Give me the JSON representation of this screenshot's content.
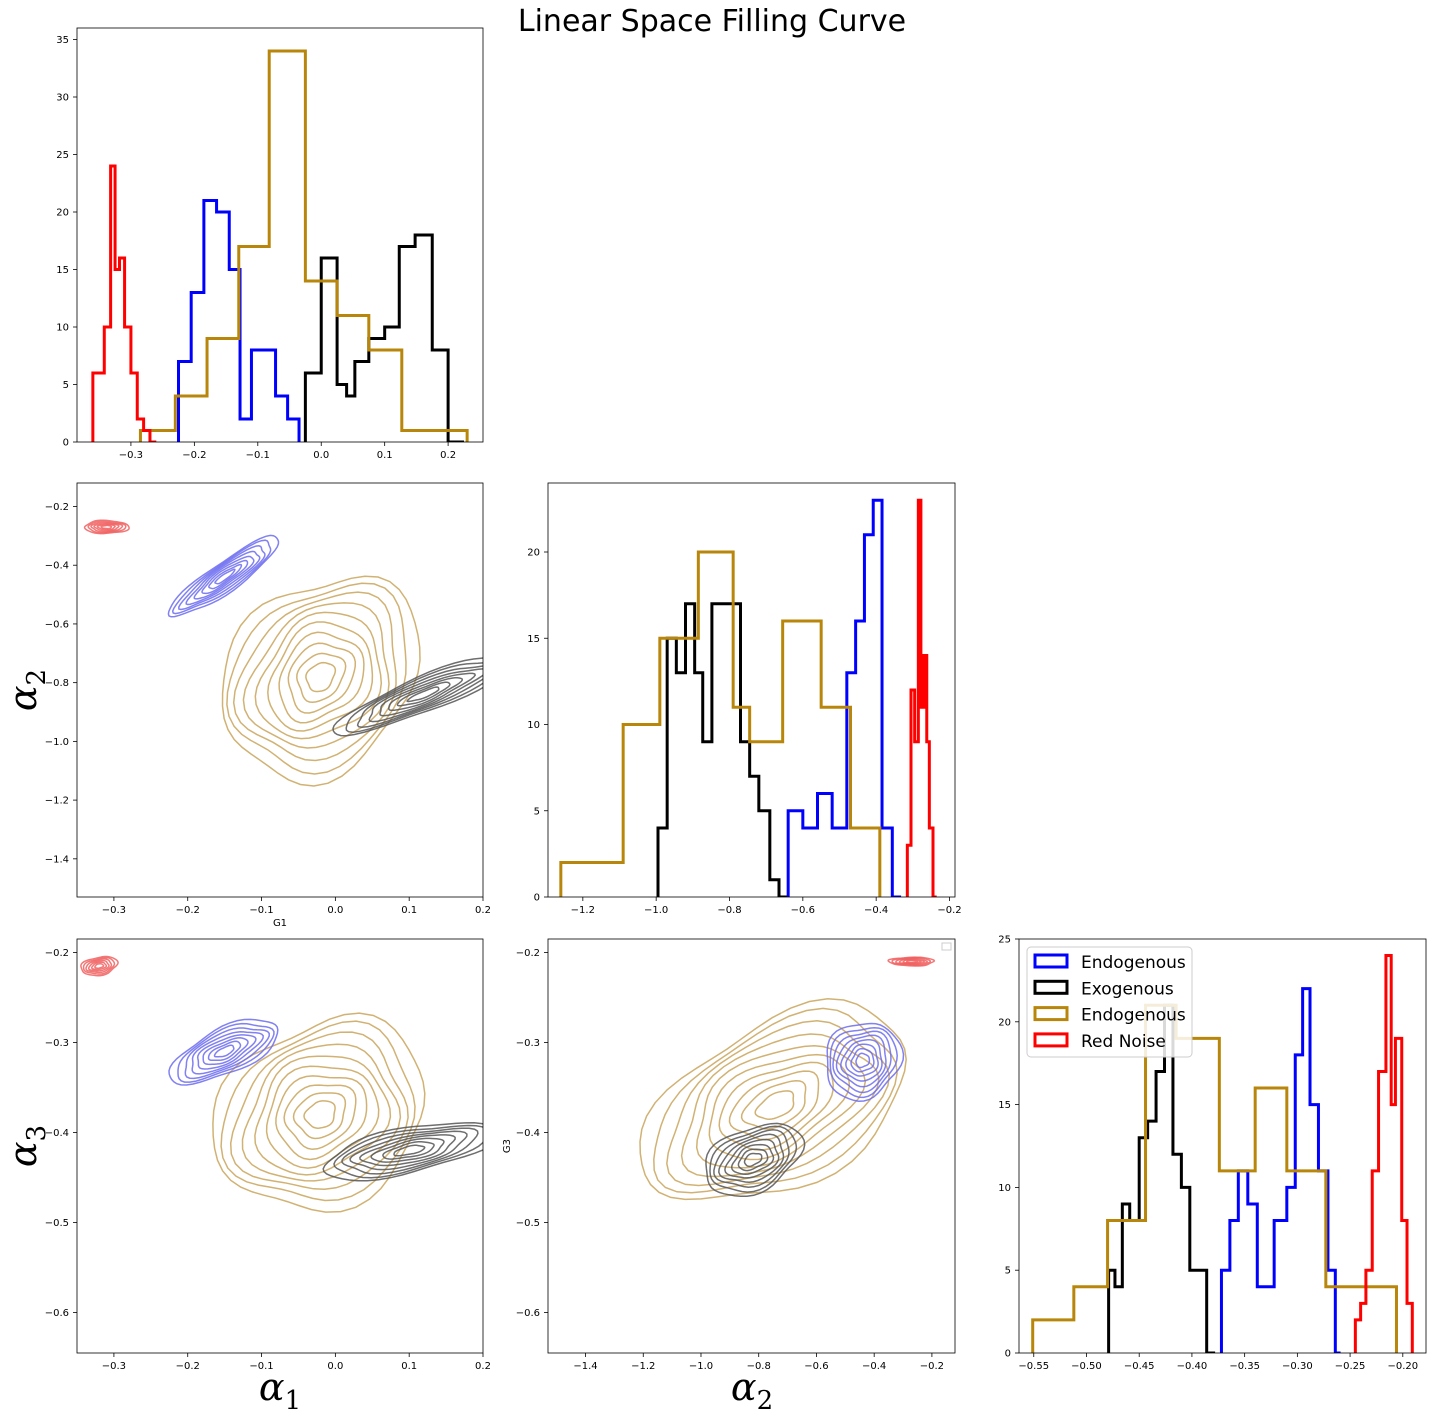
{
  "title": "Linear Space Filling Curve",
  "colors": {
    "blue": "#0000ff",
    "black": "#000000",
    "gold": "#b8860b",
    "red": "#ff0000",
    "blue_c": "#6b6bf0",
    "black_c": "#555555",
    "gold_c": "#c9a45a",
    "red_c": "#f06060"
  },
  "legend": [
    "Endogenous",
    "Exogenous",
    "Endogenous",
    "Red Noise"
  ],
  "chart_data": [
    {
      "type": "histogram",
      "panel": "G1 marginal",
      "xlim": [
        -0.385,
        0.255
      ],
      "ylim": [
        0,
        36
      ],
      "xticks": [
        -0.3,
        -0.2,
        -0.1,
        0.0,
        0.1,
        0.2
      ],
      "xtick_labels": [
        "−0.3",
        "−0.2",
        "−0.1",
        "0.0",
        "0.1",
        "0.2"
      ],
      "yticks": [
        0,
        5,
        10,
        15,
        20,
        25,
        30,
        35
      ],
      "ytick_labels": [
        "0",
        "5",
        "10",
        "15",
        "20",
        "25",
        "30",
        "35"
      ],
      "series": [
        {
          "name": "Endogenous",
          "color": "blue",
          "edges": [
            -0.225,
            -0.205,
            -0.185,
            -0.165,
            -0.145,
            -0.128,
            -0.11,
            -0.072,
            -0.053,
            -0.035
          ],
          "counts": [
            7,
            13,
            21,
            20,
            15,
            2,
            8,
            4,
            2
          ]
        },
        {
          "name": "Exogenous",
          "color": "black",
          "edges": [
            -0.025,
            0.0,
            0.025,
            0.04,
            0.053,
            0.075,
            0.1,
            0.123,
            0.148,
            0.175,
            0.2,
            0.225
          ],
          "counts": [
            6,
            16,
            5,
            4,
            7,
            9,
            10,
            17,
            18,
            8,
            0
          ]
        },
        {
          "name": "Endogenous",
          "color": "gold",
          "edges": [
            -0.285,
            -0.23,
            -0.18,
            -0.13,
            -0.082,
            -0.025,
            0.025,
            0.075,
            0.127,
            0.23
          ],
          "counts": [
            1,
            4,
            9,
            17,
            34,
            14,
            11,
            8,
            1
          ]
        },
        {
          "name": "Red Noise",
          "color": "red",
          "edges": [
            -0.36,
            -0.342,
            -0.332,
            -0.325,
            -0.318,
            -0.31,
            -0.3,
            -0.29,
            -0.28,
            -0.27,
            -0.26
          ],
          "counts": [
            6,
            10,
            24,
            15,
            16,
            10,
            6,
            2,
            1,
            0
          ]
        }
      ]
    },
    {
      "type": "contour",
      "panel": "G1 vs G2",
      "xlabel": "G1",
      "ylabel": "α 2",
      "xlim": [
        -0.35,
        0.2
      ],
      "ylim": [
        -1.53,
        -0.12
      ],
      "xticks": [
        -0.3,
        -0.2,
        -0.1,
        0.0,
        0.1,
        0.2
      ],
      "xtick_labels": [
        "−0.3",
        "−0.2",
        "−0.1",
        "0.0",
        "0.1",
        "0.2"
      ],
      "yticks": [
        -1.4,
        -1.2,
        -1.0,
        -0.8,
        -0.6,
        -0.4,
        -0.2
      ],
      "ytick_labels": [
        "−1.4",
        "−1.2",
        "−1.0",
        "−0.8",
        "−0.6",
        "−0.4",
        "−0.2"
      ],
      "blobs": [
        {
          "color": "gold_c",
          "cx": -0.02,
          "cy": -0.78,
          "rx": 0.15,
          "ry": 0.3,
          "angle": -48,
          "levels": 10
        },
        {
          "color": "blue_c",
          "cx": -0.15,
          "cy": -0.44,
          "rx": 0.09,
          "ry": 0.05,
          "angle": -35,
          "levels": 8
        },
        {
          "color": "black_c",
          "cx": 0.12,
          "cy": -0.84,
          "rx": 0.13,
          "ry": 0.06,
          "angle": -22,
          "levels": 8
        },
        {
          "color": "red_c",
          "cx": -0.31,
          "cy": -0.27,
          "rx": 0.03,
          "ry": 0.022,
          "angle": 0,
          "levels": 6
        }
      ]
    },
    {
      "type": "histogram",
      "panel": "G2 marginal",
      "xlim": [
        -1.295,
        -0.185
      ],
      "ylim": [
        0,
        24
      ],
      "xticks": [
        -1.2,
        -1.0,
        -0.8,
        -0.6,
        -0.4,
        -0.2
      ],
      "xtick_labels": [
        "−1.2",
        "−1.0",
        "−0.8",
        "−0.6",
        "−0.4",
        "−0.2"
      ],
      "yticks": [
        0,
        5,
        10,
        15,
        20
      ],
      "ytick_labels": [
        "0",
        "5",
        "10",
        "15",
        "20"
      ],
      "series": [
        {
          "name": "Endogenous",
          "color": "blue",
          "edges": [
            -0.64,
            -0.6,
            -0.56,
            -0.52,
            -0.48,
            -0.456,
            -0.432,
            -0.408,
            -0.384,
            -0.356,
            -0.332
          ],
          "counts": [
            5,
            4,
            6,
            4,
            13,
            16,
            21,
            23,
            4,
            0
          ]
        },
        {
          "name": "Exogenous",
          "color": "black",
          "edges": [
            -0.995,
            -0.97,
            -0.945,
            -0.92,
            -0.895,
            -0.873,
            -0.848,
            -0.77,
            -0.745,
            -0.72,
            -0.69,
            -0.665,
            -0.643
          ],
          "counts": [
            4,
            15,
            13,
            17,
            13,
            9,
            17,
            9,
            7,
            5,
            1,
            0
          ]
        },
        {
          "name": "Endogenous",
          "color": "gold",
          "edges": [
            -1.26,
            -1.09,
            -0.99,
            -0.935,
            -0.885,
            -0.84,
            -0.79,
            -0.745,
            -0.7,
            -0.655,
            -0.59,
            -0.55,
            -0.5,
            -0.47,
            -0.39
          ],
          "counts": [
            2,
            10,
            15,
            15,
            20,
            20,
            11,
            9,
            9,
            16,
            16,
            11,
            11,
            4
          ]
        },
        {
          "name": "Red Noise",
          "color": "red",
          "edges": [
            -0.315,
            -0.305,
            -0.295,
            -0.285,
            -0.278,
            -0.27,
            -0.262,
            -0.255,
            -0.245,
            -0.235
          ],
          "counts": [
            3,
            12,
            9,
            23,
            11,
            14,
            9,
            4,
            0
          ]
        }
      ]
    },
    {
      "type": "contour",
      "panel": "G1 vs G3",
      "xlabel": "α 1",
      "ylabel": "α 3",
      "xlim": [
        -0.35,
        0.2
      ],
      "ylim": [
        -0.645,
        -0.185
      ],
      "xticks": [
        -0.3,
        -0.2,
        -0.1,
        0.0,
        0.1,
        0.2
      ],
      "xtick_labels": [
        "−0.3",
        "−0.2",
        "−0.1",
        "0.0",
        "0.1",
        "0.2"
      ],
      "yticks": [
        -0.6,
        -0.5,
        -0.4,
        -0.3,
        -0.2
      ],
      "ytick_labels": [
        "−0.6",
        "−0.5",
        "−0.4",
        "−0.3",
        "−0.2"
      ],
      "blobs": [
        {
          "color": "gold_c",
          "cx": -0.02,
          "cy": -0.38,
          "rx": 0.15,
          "ry": 0.1,
          "angle": -30,
          "levels": 10
        },
        {
          "color": "blue_c",
          "cx": -0.15,
          "cy": -0.31,
          "rx": 0.08,
          "ry": 0.025,
          "angle": -25,
          "levels": 8
        },
        {
          "color": "black_c",
          "cx": 0.1,
          "cy": -0.42,
          "rx": 0.12,
          "ry": 0.025,
          "angle": -12,
          "levels": 8
        },
        {
          "color": "red_c",
          "cx": -0.32,
          "cy": -0.215,
          "rx": 0.025,
          "ry": 0.01,
          "angle": -10,
          "levels": 6
        }
      ]
    },
    {
      "type": "contour",
      "panel": "G2 vs G3",
      "ylabel": "G3",
      "xlabel": "α 2",
      "xlim": [
        -1.53,
        -0.12
      ],
      "ylim": [
        -0.645,
        -0.185
      ],
      "xticks": [
        -1.4,
        -1.2,
        -1.0,
        -0.8,
        -0.6,
        -0.4,
        -0.2
      ],
      "xtick_labels": [
        "−1.4",
        "−1.2",
        "−1.0",
        "−0.8",
        "−0.6",
        "−0.4",
        "−0.2"
      ],
      "yticks": [
        -0.6,
        -0.5,
        -0.4,
        -0.3,
        -0.2
      ],
      "ytick_labels": [
        "−0.6",
        "−0.5",
        "−0.4",
        "−0.3",
        "−0.2"
      ],
      "blobs": [
        {
          "color": "gold_c",
          "cx": -0.74,
          "cy": -0.37,
          "rx": 0.5,
          "ry": 0.09,
          "angle": -28,
          "levels": 10
        },
        {
          "color": "blue_c",
          "cx": -0.44,
          "cy": -0.32,
          "rx": 0.14,
          "ry": 0.04,
          "angle": -50,
          "levels": 8
        },
        {
          "color": "black_c",
          "cx": -0.82,
          "cy": -0.43,
          "rx": 0.18,
          "ry": 0.035,
          "angle": -25,
          "levels": 8
        },
        {
          "color": "red_c",
          "cx": -0.27,
          "cy": -0.21,
          "rx": 0.015,
          "ry": 0.025,
          "angle": 0,
          "levels": 6
        }
      ]
    },
    {
      "type": "histogram",
      "panel": "G3 marginal",
      "xlim": [
        -0.564,
        -0.178
      ],
      "ylim": [
        0,
        25
      ],
      "xticks": [
        -0.55,
        -0.5,
        -0.45,
        -0.4,
        -0.35,
        -0.3,
        -0.25,
        -0.2
      ],
      "xtick_labels": [
        "−0.55",
        "−0.50",
        "−0.45",
        "−0.40",
        "−0.35",
        "−0.30",
        "−0.25",
        "−0.20"
      ],
      "yticks": [
        0,
        5,
        10,
        15,
        20,
        25
      ],
      "ytick_labels": [
        "0",
        "5",
        "10",
        "15",
        "20",
        "25"
      ],
      "series": [
        {
          "name": "Endogenous",
          "color": "blue",
          "edges": [
            -0.372,
            -0.364,
            -0.356,
            -0.347,
            -0.338,
            -0.322,
            -0.31,
            -0.302,
            -0.295,
            -0.288,
            -0.28,
            -0.271,
            -0.264,
            -0.259
          ],
          "counts": [
            5,
            8,
            11,
            9,
            4,
            8,
            10,
            18,
            22,
            15,
            11,
            5,
            0
          ]
        },
        {
          "name": "Exogenous",
          "color": "black",
          "edges": [
            -0.479,
            -0.473,
            -0.466,
            -0.459,
            -0.45,
            -0.442,
            -0.434,
            -0.426,
            -0.418,
            -0.41,
            -0.402,
            -0.394,
            -0.386,
            -0.378
          ],
          "counts": [
            5,
            4,
            9,
            8,
            13,
            14,
            17,
            21,
            12,
            10,
            5,
            5,
            0
          ]
        },
        {
          "name": "Endogenous",
          "color": "gold",
          "edges": [
            -0.551,
            -0.512,
            -0.48,
            -0.444,
            -0.415,
            -0.374,
            -0.34,
            -0.31,
            -0.273,
            -0.206
          ],
          "counts": [
            2,
            4,
            8,
            21,
            19,
            11,
            16,
            11,
            4
          ]
        },
        {
          "name": "Red Noise",
          "color": "red",
          "edges": [
            -0.245,
            -0.24,
            -0.235,
            -0.229,
            -0.223,
            -0.216,
            -0.211,
            -0.207,
            -0.201,
            -0.196,
            -0.191
          ],
          "counts": [
            2,
            3,
            5,
            11,
            17,
            24,
            15,
            19,
            8,
            3
          ]
        }
      ]
    }
  ]
}
